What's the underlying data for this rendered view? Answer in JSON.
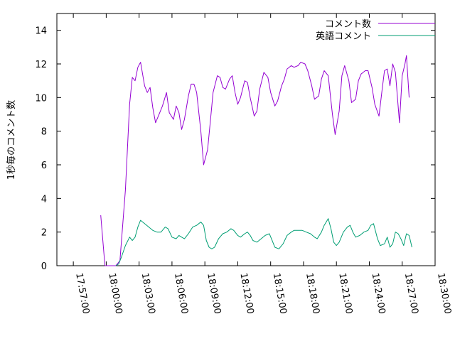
{
  "chart_data": {
    "type": "line",
    "title": "",
    "xlabel": "",
    "ylabel": "1秒毎のコメント数",
    "xlim": [
      "17:55:30",
      "18:30:00"
    ],
    "ylim": [
      0,
      15
    ],
    "x_ticks": [
      "17:57:00",
      "18:00:00",
      "18:03:00",
      "18:06:00",
      "18:09:00",
      "18:12:00",
      "18:15:00",
      "18:18:00",
      "18:21:00",
      "18:24:00",
      "18:27:00",
      "18:30:00"
    ],
    "y_ticks": [
      0,
      2,
      4,
      6,
      8,
      10,
      12,
      14
    ],
    "grid": false,
    "legend_position": "top-right",
    "series": [
      {
        "name": "コメント数",
        "color": "#9400d3",
        "points": [
          [
            "17:59:30",
            3.0
          ],
          [
            "17:59:53",
            0.0
          ],
          [
            "18:00:53",
            0.0
          ],
          [
            "18:01:15",
            0.3
          ],
          [
            "18:01:45",
            4.5
          ],
          [
            "18:02:08",
            9.6
          ],
          [
            "18:02:23",
            11.2
          ],
          [
            "18:02:38",
            11.0
          ],
          [
            "18:02:53",
            11.8
          ],
          [
            "18:03:08",
            12.1
          ],
          [
            "18:03:30",
            10.7
          ],
          [
            "18:03:45",
            10.3
          ],
          [
            "18:04:00",
            10.6
          ],
          [
            "18:04:15",
            9.4
          ],
          [
            "18:04:30",
            8.5
          ],
          [
            "18:04:53",
            9.1
          ],
          [
            "18:05:08",
            9.5
          ],
          [
            "18:05:30",
            10.3
          ],
          [
            "18:05:45",
            9.1
          ],
          [
            "18:06:08",
            8.7
          ],
          [
            "18:06:23",
            9.5
          ],
          [
            "18:06:38",
            9.1
          ],
          [
            "18:06:53",
            8.1
          ],
          [
            "18:07:08",
            8.7
          ],
          [
            "18:07:30",
            10.1
          ],
          [
            "18:07:45",
            10.8
          ],
          [
            "18:08:00",
            10.8
          ],
          [
            "18:08:15",
            10.3
          ],
          [
            "18:08:38",
            8.0
          ],
          [
            "18:08:53",
            6.0
          ],
          [
            "18:09:15",
            6.9
          ],
          [
            "18:09:30",
            8.6
          ],
          [
            "18:09:45",
            10.3
          ],
          [
            "18:10:08",
            11.3
          ],
          [
            "18:10:23",
            11.2
          ],
          [
            "18:10:38",
            10.6
          ],
          [
            "18:10:53",
            10.5
          ],
          [
            "18:11:15",
            11.1
          ],
          [
            "18:11:30",
            11.3
          ],
          [
            "18:11:45",
            10.3
          ],
          [
            "18:12:00",
            9.6
          ],
          [
            "18:12:15",
            10.0
          ],
          [
            "18:12:38",
            11.0
          ],
          [
            "18:12:53",
            10.9
          ],
          [
            "18:13:08",
            10.0
          ],
          [
            "18:13:30",
            8.9
          ],
          [
            "18:13:45",
            9.2
          ],
          [
            "18:14:00",
            10.5
          ],
          [
            "18:14:23",
            11.5
          ],
          [
            "18:14:45",
            11.2
          ],
          [
            "18:15:00",
            10.3
          ],
          [
            "18:15:23",
            9.5
          ],
          [
            "18:15:38",
            9.8
          ],
          [
            "18:16:00",
            10.7
          ],
          [
            "18:16:15",
            11.1
          ],
          [
            "18:16:30",
            11.7
          ],
          [
            "18:16:53",
            11.9
          ],
          [
            "18:17:08",
            11.8
          ],
          [
            "18:17:30",
            11.9
          ],
          [
            "18:17:45",
            12.1
          ],
          [
            "18:18:08",
            12.0
          ],
          [
            "18:18:23",
            11.6
          ],
          [
            "18:18:45",
            10.7
          ],
          [
            "18:19:00",
            9.9
          ],
          [
            "18:19:23",
            10.1
          ],
          [
            "18:19:38",
            11.1
          ],
          [
            "18:19:53",
            11.6
          ],
          [
            "18:20:15",
            11.3
          ],
          [
            "18:20:38",
            9.0
          ],
          [
            "18:20:53",
            7.8
          ],
          [
            "18:21:15",
            9.2
          ],
          [
            "18:21:30",
            11.3
          ],
          [
            "18:21:45",
            11.9
          ],
          [
            "18:22:08",
            11.0
          ],
          [
            "18:22:23",
            9.7
          ],
          [
            "18:22:45",
            9.9
          ],
          [
            "18:23:00",
            11.0
          ],
          [
            "18:23:15",
            11.4
          ],
          [
            "18:23:38",
            11.6
          ],
          [
            "18:23:53",
            11.6
          ],
          [
            "18:24:15",
            10.6
          ],
          [
            "18:24:30",
            9.6
          ],
          [
            "18:24:53",
            8.9
          ],
          [
            "18:25:08",
            10.3
          ],
          [
            "18:25:23",
            11.6
          ],
          [
            "18:25:38",
            11.7
          ],
          [
            "18:25:53",
            10.7
          ],
          [
            "18:26:08",
            12.0
          ],
          [
            "18:26:23",
            11.5
          ],
          [
            "18:26:45",
            8.5
          ],
          [
            "18:27:00",
            11.3
          ],
          [
            "18:27:15",
            12.0
          ],
          [
            "18:27:23",
            12.5
          ],
          [
            "18:27:38",
            10.0
          ]
        ]
      },
      {
        "name": "英語コメント",
        "color": "#009e73",
        "points": [
          [
            "18:00:53",
            0.0
          ],
          [
            "18:01:08",
            0.1
          ],
          [
            "18:01:23",
            0.5
          ],
          [
            "18:01:45",
            1.2
          ],
          [
            "18:02:08",
            1.7
          ],
          [
            "18:02:23",
            1.5
          ],
          [
            "18:02:38",
            1.7
          ],
          [
            "18:02:53",
            2.3
          ],
          [
            "18:03:08",
            2.7
          ],
          [
            "18:03:30",
            2.5
          ],
          [
            "18:03:53",
            2.3
          ],
          [
            "18:04:15",
            2.1
          ],
          [
            "18:04:38",
            2.0
          ],
          [
            "18:05:00",
            2.0
          ],
          [
            "18:05:23",
            2.3
          ],
          [
            "18:05:38",
            2.2
          ],
          [
            "18:06:00",
            1.7
          ],
          [
            "18:06:23",
            1.6
          ],
          [
            "18:06:38",
            1.8
          ],
          [
            "18:06:53",
            1.7
          ],
          [
            "18:07:08",
            1.6
          ],
          [
            "18:07:30",
            1.9
          ],
          [
            "18:07:53",
            2.3
          ],
          [
            "18:08:15",
            2.4
          ],
          [
            "18:08:38",
            2.6
          ],
          [
            "18:08:53",
            2.4
          ],
          [
            "18:09:08",
            1.5
          ],
          [
            "18:09:23",
            1.1
          ],
          [
            "18:09:38",
            1.0
          ],
          [
            "18:09:53",
            1.1
          ],
          [
            "18:10:15",
            1.6
          ],
          [
            "18:10:38",
            1.9
          ],
          [
            "18:11:00",
            2.0
          ],
          [
            "18:11:23",
            2.2
          ],
          [
            "18:11:38",
            2.1
          ],
          [
            "18:12:00",
            1.8
          ],
          [
            "18:12:15",
            1.7
          ],
          [
            "18:12:38",
            1.9
          ],
          [
            "18:12:53",
            2.0
          ],
          [
            "18:13:08",
            1.8
          ],
          [
            "18:13:23",
            1.5
          ],
          [
            "18:13:45",
            1.4
          ],
          [
            "18:14:08",
            1.6
          ],
          [
            "18:14:30",
            1.8
          ],
          [
            "18:14:53",
            1.9
          ],
          [
            "18:15:08",
            1.5
          ],
          [
            "18:15:23",
            1.1
          ],
          [
            "18:15:45",
            1.0
          ],
          [
            "18:16:08",
            1.3
          ],
          [
            "18:16:30",
            1.8
          ],
          [
            "18:16:53",
            2.0
          ],
          [
            "18:17:08",
            2.1
          ],
          [
            "18:17:30",
            2.1
          ],
          [
            "18:17:53",
            2.1
          ],
          [
            "18:18:15",
            2.0
          ],
          [
            "18:18:38",
            1.9
          ],
          [
            "18:19:00",
            1.7
          ],
          [
            "18:19:15",
            1.6
          ],
          [
            "18:19:38",
            2.0
          ],
          [
            "18:19:53",
            2.4
          ],
          [
            "18:20:15",
            2.8
          ],
          [
            "18:20:30",
            2.2
          ],
          [
            "18:20:45",
            1.4
          ],
          [
            "18:21:00",
            1.2
          ],
          [
            "18:21:15",
            1.4
          ],
          [
            "18:21:38",
            2.0
          ],
          [
            "18:22:00",
            2.3
          ],
          [
            "18:22:15",
            2.4
          ],
          [
            "18:22:30",
            2.0
          ],
          [
            "18:22:45",
            1.7
          ],
          [
            "18:23:08",
            1.8
          ],
          [
            "18:23:30",
            2.0
          ],
          [
            "18:23:53",
            2.1
          ],
          [
            "18:24:08",
            2.4
          ],
          [
            "18:24:23",
            2.5
          ],
          [
            "18:24:45",
            1.6
          ],
          [
            "18:25:00",
            1.2
          ],
          [
            "18:25:23",
            1.3
          ],
          [
            "18:25:38",
            1.7
          ],
          [
            "18:25:53",
            1.1
          ],
          [
            "18:26:08",
            1.3
          ],
          [
            "18:26:23",
            2.0
          ],
          [
            "18:26:38",
            1.9
          ],
          [
            "18:26:53",
            1.6
          ],
          [
            "18:27:08",
            1.2
          ],
          [
            "18:27:23",
            1.9
          ],
          [
            "18:27:38",
            1.8
          ],
          [
            "18:27:53",
            1.1
          ]
        ]
      }
    ]
  }
}
